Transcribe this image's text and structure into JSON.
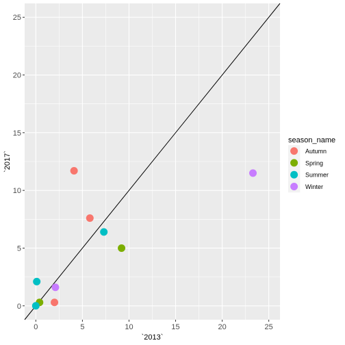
{
  "chart_data": {
    "type": "scatter",
    "title": "",
    "xlabel": "`2013`",
    "ylabel": "`2017`",
    "xlim": [
      -1.2,
      26.2
    ],
    "ylim": [
      -1.2,
      26.2
    ],
    "xticks": [
      0,
      5,
      10,
      15,
      20,
      25
    ],
    "yticks": [
      0,
      5,
      10,
      15,
      20,
      25
    ],
    "grid": true,
    "background": "#ebebeb",
    "reference_line": {
      "type": "identity",
      "slope": 1,
      "intercept": 0,
      "color": "#000000"
    },
    "legend": {
      "title": "season_name",
      "placement": "right"
    },
    "series": [
      {
        "name": "Autumn",
        "color": "#f8766d",
        "points": [
          [
            4.1,
            11.7
          ],
          [
            5.8,
            7.6
          ],
          [
            2.0,
            0.3
          ]
        ]
      },
      {
        "name": "Spring",
        "color": "#7cae00",
        "points": [
          [
            9.2,
            5.0
          ],
          [
            0.4,
            0.3
          ]
        ]
      },
      {
        "name": "Summer",
        "color": "#00bfc4",
        "points": [
          [
            7.3,
            6.4
          ],
          [
            0.1,
            2.1
          ],
          [
            0.0,
            0.0
          ]
        ]
      },
      {
        "name": "Winter",
        "color": "#c77cff",
        "points": [
          [
            23.3,
            11.5
          ],
          [
            2.1,
            1.6
          ]
        ]
      }
    ]
  }
}
